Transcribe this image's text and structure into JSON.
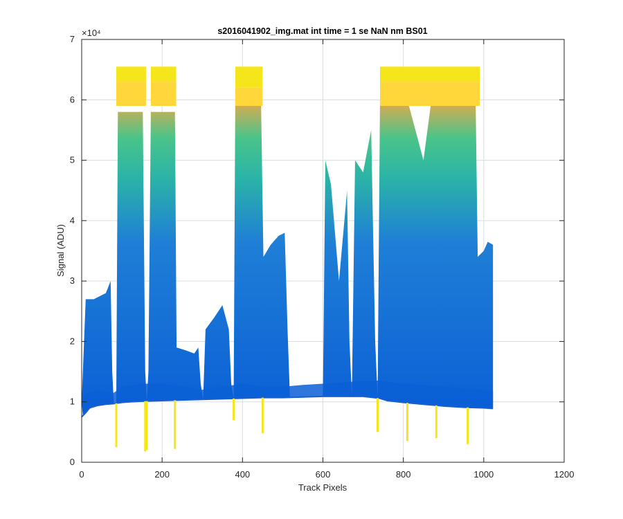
{
  "chart_data": {
    "type": "area",
    "title": "s2016041902_img.mat int time = 1 se  NaN nm BS01",
    "xlabel": "Track Pixels",
    "ylabel": "Signal (ADU)",
    "y_exponent_label": "×10⁴",
    "xlim": [
      0,
      1200
    ],
    "ylim": [
      0,
      70000
    ],
    "xticks": [
      0,
      200,
      400,
      600,
      800,
      1000,
      1200
    ],
    "yticks": [
      0,
      10000,
      20000,
      30000,
      40000,
      50000,
      60000,
      70000
    ],
    "xtick_labels": [
      "0",
      "200",
      "400",
      "600",
      "800",
      "1000",
      "1200"
    ],
    "ytick_labels": [
      "0",
      "1",
      "2",
      "3",
      "4",
      "5",
      "6",
      "7"
    ],
    "grid": true,
    "colors": {
      "low": "#0b5fd6",
      "mid": "#1f8fd6",
      "teal": "#2ab3a8",
      "green": "#49c48a",
      "orange": "#e9a84a",
      "saturated": "#ffd73a",
      "yellow": "#f5e61c"
    },
    "series": [
      {
        "values": [
          [
            0,
            7500
          ],
          [
            10,
            8200
          ],
          [
            20,
            9000
          ],
          [
            40,
            9400
          ],
          [
            60,
            9600
          ],
          [
            80,
            9700
          ],
          [
            100,
            9900
          ],
          [
            120,
            10000
          ],
          [
            150,
            10100
          ],
          [
            200,
            10200
          ],
          [
            250,
            10300
          ],
          [
            300,
            10400
          ],
          [
            350,
            10500
          ],
          [
            400,
            10600
          ],
          [
            450,
            10700
          ],
          [
            500,
            10700
          ],
          [
            550,
            10800
          ],
          [
            600,
            10900
          ],
          [
            650,
            10900
          ],
          [
            700,
            10900
          ],
          [
            740,
            10600
          ],
          [
            760,
            10200
          ],
          [
            800,
            9900
          ],
          [
            850,
            9600
          ],
          [
            900,
            9300
          ],
          [
            950,
            9100
          ],
          [
            1000,
            9000
          ],
          [
            1023,
            8900
          ]
        ]
      },
      {
        "values": [
          [
            0,
            10500
          ],
          [
            10,
            11500
          ],
          [
            40,
            12000
          ],
          [
            80,
            11500
          ],
          [
            100,
            12500
          ],
          [
            150,
            13000
          ],
          [
            200,
            13000
          ],
          [
            260,
            12500
          ],
          [
            300,
            12000
          ],
          [
            350,
            12500
          ],
          [
            400,
            13000
          ],
          [
            450,
            12500
          ],
          [
            500,
            12500
          ],
          [
            550,
            12800
          ],
          [
            600,
            13000
          ],
          [
            650,
            13200
          ],
          [
            700,
            13500
          ],
          [
            740,
            13500
          ],
          [
            800,
            13000
          ],
          [
            850,
            12800
          ],
          [
            900,
            12500
          ],
          [
            950,
            12200
          ],
          [
            1000,
            12000
          ],
          [
            1023,
            11800
          ]
        ]
      },
      {
        "values": [
          [
            0,
            10000
          ],
          [
            10,
            27000
          ],
          [
            30,
            27000
          ],
          [
            60,
            28000
          ],
          [
            72,
            30000
          ],
          [
            76,
            15000
          ],
          [
            80,
            9700
          ],
          [
            86,
            9700
          ],
          [
            90,
            58000
          ],
          [
            110,
            58000
          ],
          [
            140,
            58000
          ],
          [
            152,
            58000
          ],
          [
            158,
            15000
          ],
          [
            162,
            10100
          ],
          [
            166,
            15000
          ],
          [
            172,
            58000
          ],
          [
            200,
            58000
          ],
          [
            225,
            58000
          ],
          [
            232,
            58000
          ],
          [
            236,
            19000
          ],
          [
            260,
            18500
          ],
          [
            280,
            18000
          ],
          [
            290,
            19000
          ],
          [
            296,
            13000
          ],
          [
            302,
            10300
          ],
          [
            308,
            22000
          ],
          [
            330,
            24000
          ],
          [
            350,
            26000
          ],
          [
            366,
            22000
          ],
          [
            372,
            13000
          ],
          [
            378,
            10500
          ],
          [
            382,
            60000
          ],
          [
            400,
            60000
          ],
          [
            430,
            60000
          ],
          [
            446,
            60000
          ],
          [
            452,
            34000
          ],
          [
            470,
            36000
          ],
          [
            490,
            37500
          ],
          [
            505,
            38000
          ],
          [
            512,
            22000
          ],
          [
            518,
            10700
          ],
          [
            540,
            10700
          ],
          [
            600,
            10900
          ],
          [
            606,
            50000
          ],
          [
            620,
            46000
          ],
          [
            640,
            30000
          ],
          [
            660,
            45000
          ],
          [
            666,
            20000
          ],
          [
            672,
            10900
          ],
          [
            680,
            50000
          ],
          [
            700,
            48000
          ],
          [
            720,
            55000
          ],
          [
            730,
            20000
          ],
          [
            736,
            10700
          ],
          [
            742,
            60000
          ],
          [
            760,
            60000
          ],
          [
            790,
            60000
          ],
          [
            810,
            60000
          ],
          [
            830,
            55000
          ],
          [
            850,
            50000
          ],
          [
            870,
            60000
          ],
          [
            900,
            60000
          ],
          [
            940,
            60000
          ],
          [
            980,
            59000
          ],
          [
            985,
            34000
          ],
          [
            1000,
            35000
          ],
          [
            1010,
            36500
          ],
          [
            1023,
            36000
          ]
        ]
      },
      {
        "values": [
          [
            86,
            63000
          ],
          [
            160,
            63000
          ],
          [
            172,
            63000
          ],
          [
            235,
            63000
          ],
          [
            382,
            62000
          ],
          [
            450,
            62000
          ],
          [
            742,
            63000
          ],
          [
            990,
            63000
          ]
        ]
      }
    ]
  }
}
